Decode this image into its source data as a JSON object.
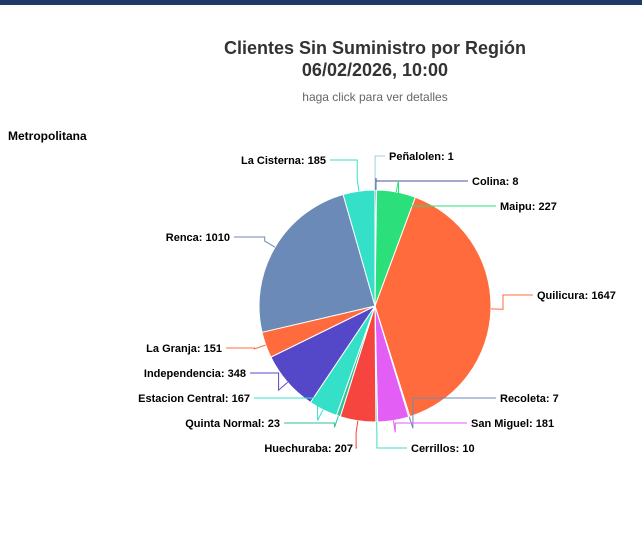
{
  "header": {
    "title_line1": "Clientes Sin Suministro por Región",
    "title_line2": "06/02/2026, 10:00",
    "subtitle": "haga click para ver detalles",
    "region": "Metropolitana"
  },
  "chart_data": {
    "type": "pie",
    "title": "Clientes Sin Suministro por Región 06/02/2026, 10:00",
    "subtitle": "haga click para ver detalles",
    "slices": [
      {
        "label": "Peñalolen",
        "value": 1,
        "color": "#9bd3dd"
      },
      {
        "label": "Colina",
        "value": 8,
        "color": "#4c4f9e"
      },
      {
        "label": "Maipu",
        "value": 227,
        "color": "#2be07a"
      },
      {
        "label": "Quilicura",
        "value": 1647,
        "color": "#ff6b3d"
      },
      {
        "label": "Recoleta",
        "value": 7,
        "color": "#6b8ab8"
      },
      {
        "label": "San Miguel",
        "value": 181,
        "color": "#e25ef5"
      },
      {
        "label": "Cerrillos",
        "value": 10,
        "color": "#35e0c8"
      },
      {
        "label": "Huechuraba",
        "value": 207,
        "color": "#f6443e"
      },
      {
        "label": "Quinta Normal",
        "value": 23,
        "color": "#2bc39a"
      },
      {
        "label": "Estacion Central",
        "value": 167,
        "color": "#35e0c8"
      },
      {
        "label": "Independencia",
        "value": 348,
        "color": "#5548c8"
      },
      {
        "label": "La Granja",
        "value": 151,
        "color": "#ff6b3d"
      },
      {
        "label": "Renca",
        "value": 1010,
        "color": "#6b8ab8"
      },
      {
        "label": "La Cisterna",
        "value": 185,
        "color": "#35e0c8"
      }
    ]
  }
}
